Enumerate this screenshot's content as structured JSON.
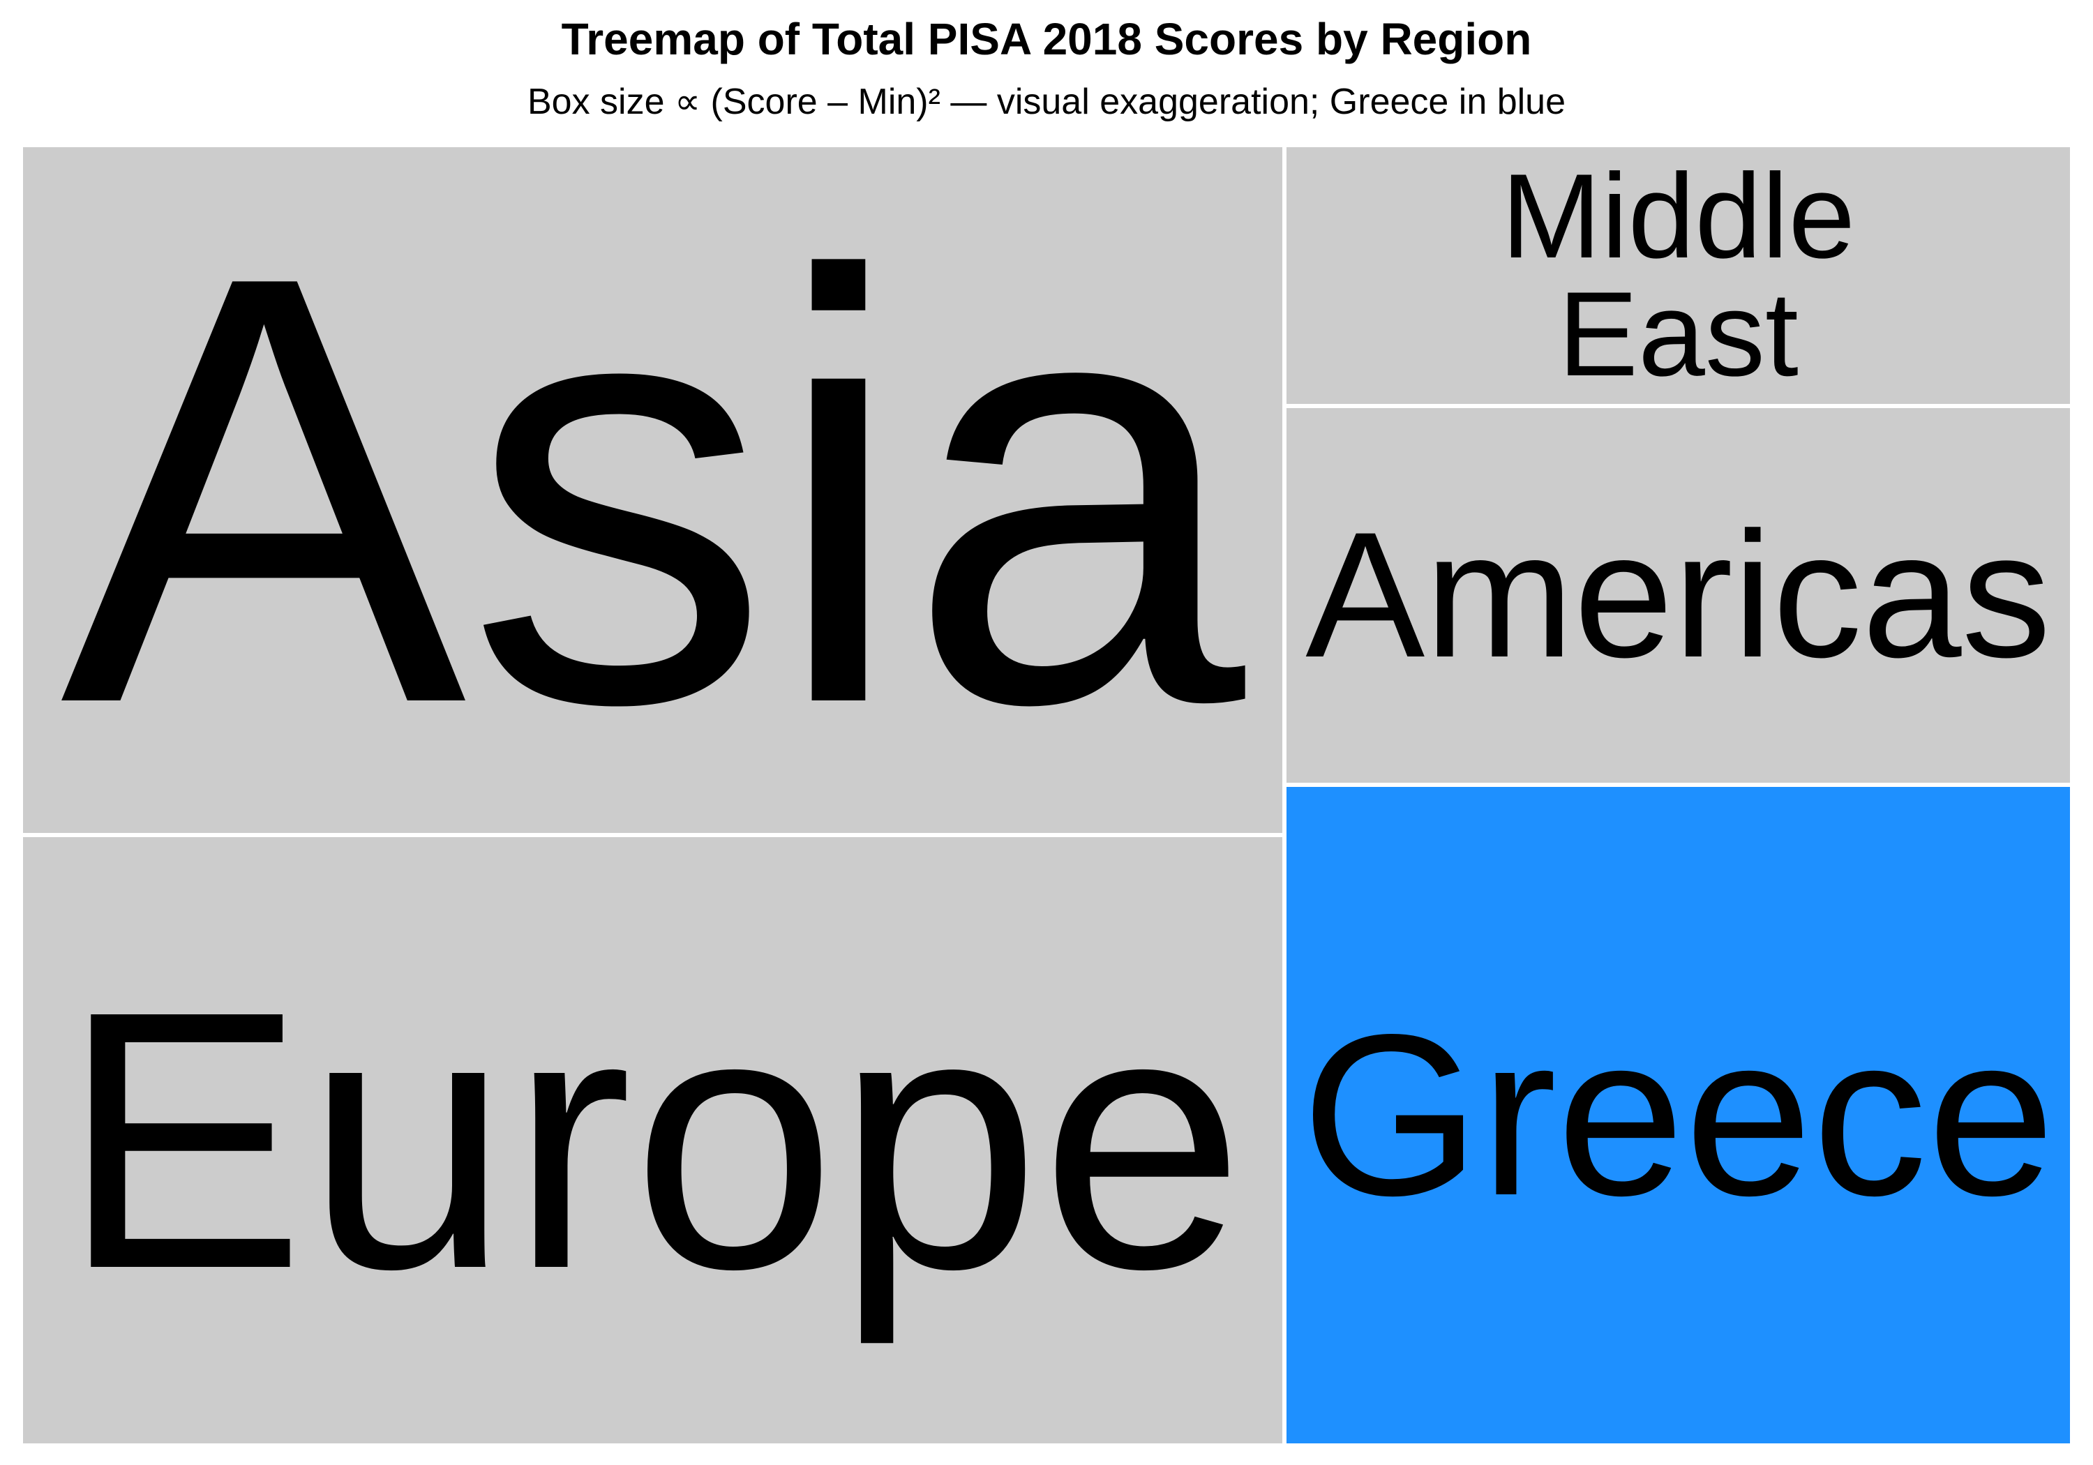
{
  "chart_data": {
    "type": "treemap",
    "title": "Treemap of Total PISA 2018 Scores by Region",
    "subtitle": "Box size ∝ (Score – Min)² — visual exaggeration; Greece in blue",
    "default_color": "#cccccc",
    "highlight_color": "#1e90ff",
    "regions": [
      {
        "name": "Asia",
        "display": [
          "Asia"
        ],
        "relative_size": 0.327,
        "highlight": false
      },
      {
        "name": "Europe",
        "display": [
          "Europe"
        ],
        "relative_size": 0.289,
        "highlight": false
      },
      {
        "name": "Middle East",
        "display": [
          "Middle",
          "East"
        ],
        "relative_size": 0.077,
        "highlight": false
      },
      {
        "name": "Americas",
        "display": [
          "Americas"
        ],
        "relative_size": 0.112,
        "highlight": false
      },
      {
        "name": "Greece",
        "display": [
          "Greece"
        ],
        "relative_size": 0.195,
        "highlight": true
      }
    ]
  }
}
